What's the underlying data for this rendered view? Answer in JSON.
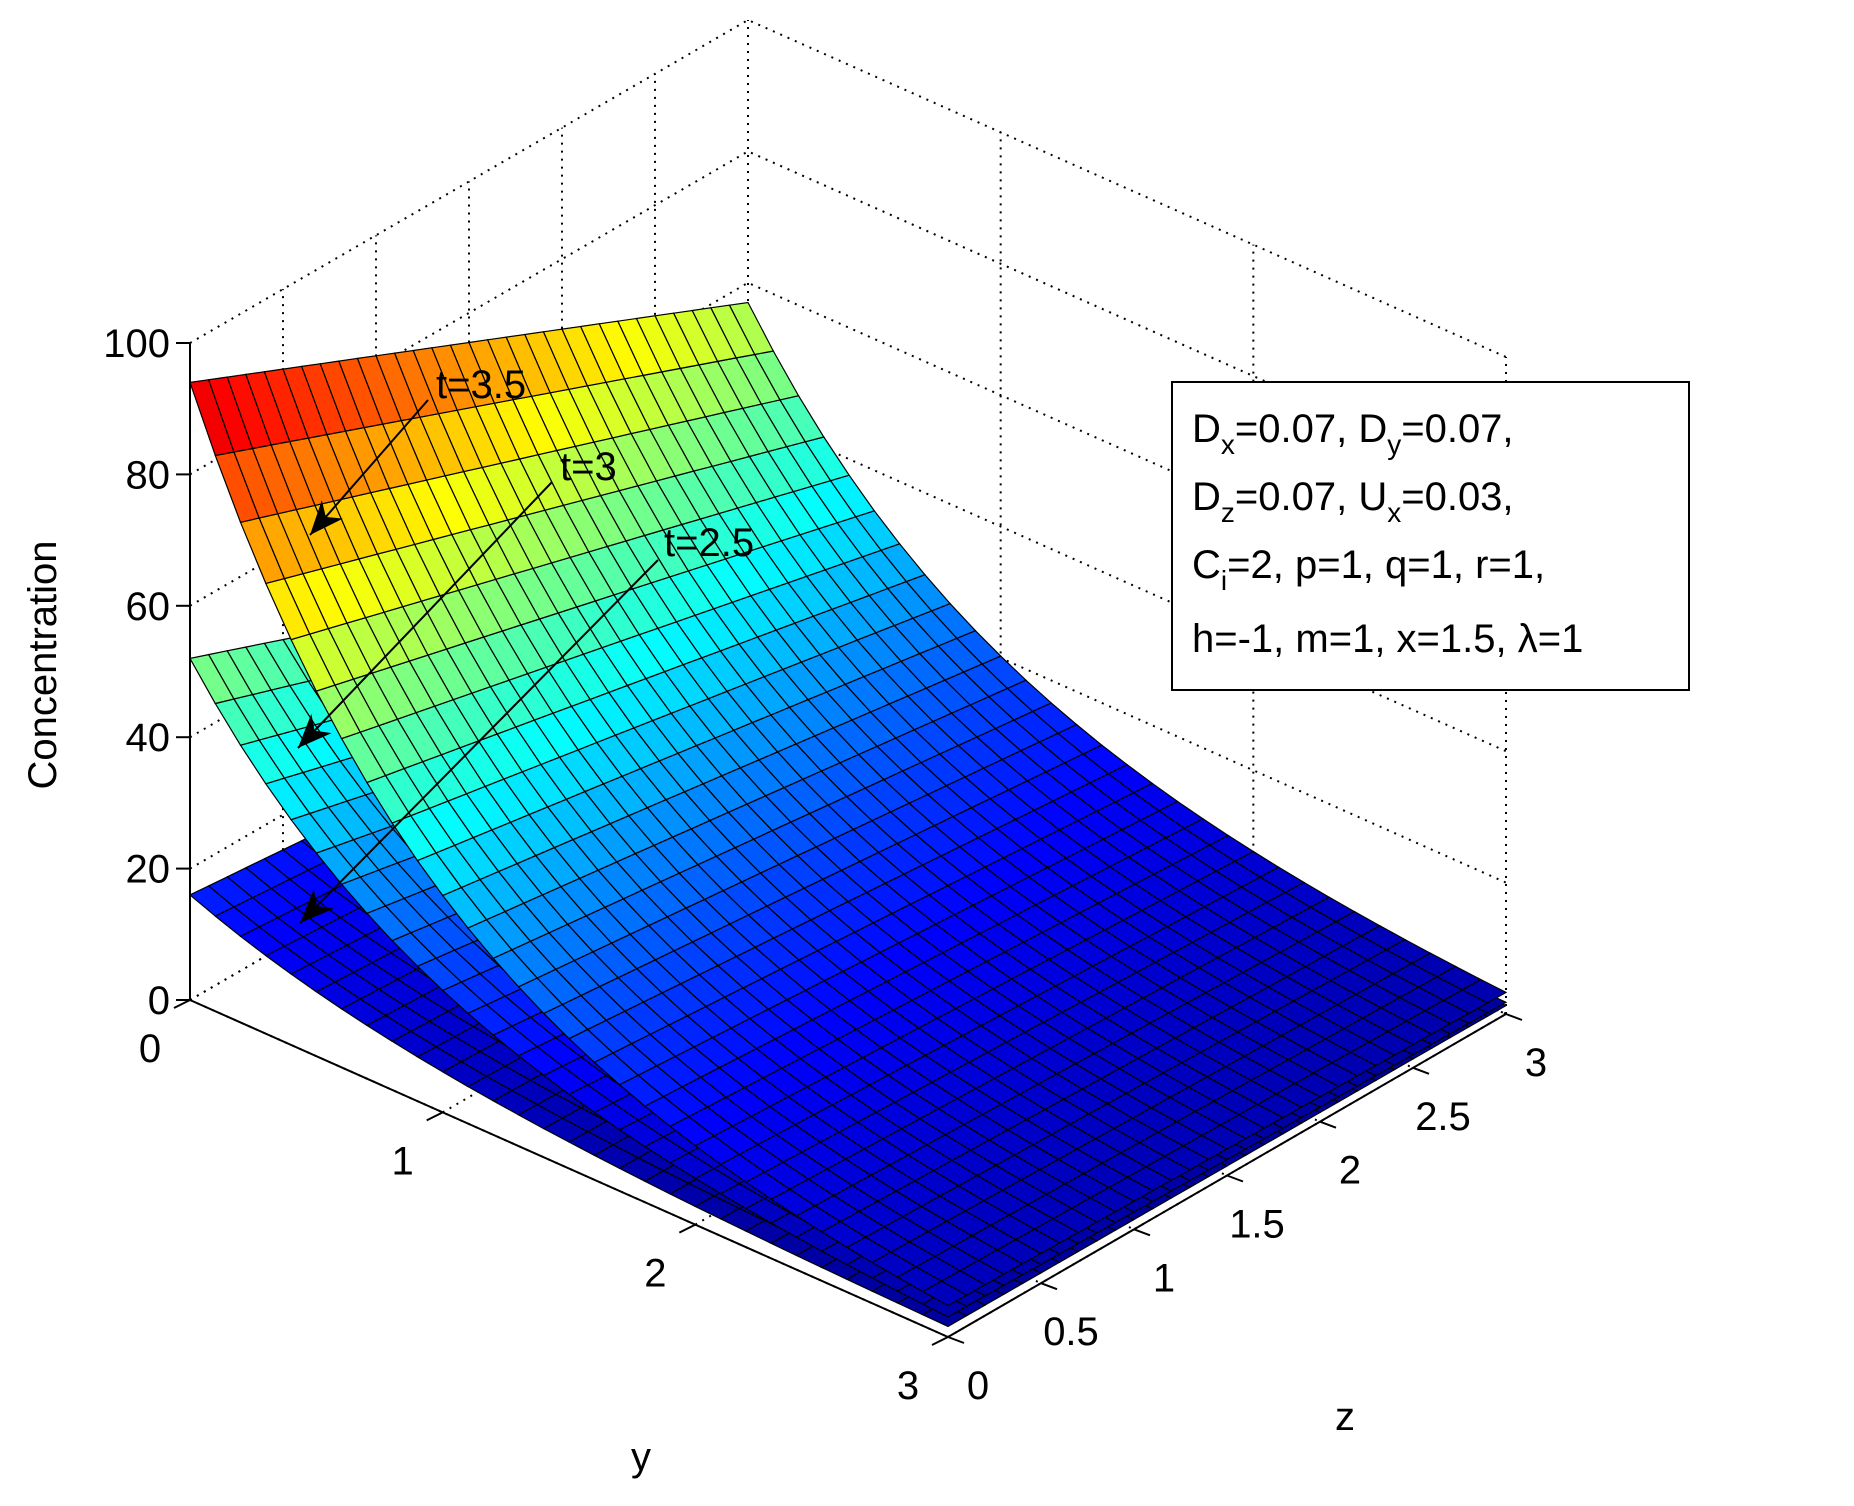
{
  "chart_data": {
    "type": "surface",
    "xlabel": "y",
    "ylabel": "z",
    "zlabel": "Concentration",
    "x_axis": {
      "label": "y",
      "range": [
        0,
        3
      ],
      "ticks": [
        "0",
        "1",
        "2",
        "3"
      ]
    },
    "y_axis": {
      "label": "z",
      "range": [
        0,
        3
      ],
      "ticks": [
        "0",
        "0.5",
        "1",
        "1.5",
        "2",
        "2.5",
        "3"
      ]
    },
    "z_axis": {
      "label": "Concentration",
      "range": [
        0,
        100
      ],
      "ticks": [
        "0",
        "20",
        "40",
        "60",
        "80",
        "100"
      ]
    },
    "grid": true,
    "colormap": [
      "#00008f",
      "#0000ff",
      "#00ffff",
      "#ffff00",
      "#ff0000",
      "#800000"
    ],
    "surfaces": [
      {
        "label": "t=3.5",
        "value_at_origin": 94,
        "value_at_z3_y0": 57,
        "value_far_corner": 1
      },
      {
        "label": "t=3",
        "value_at_origin": 52,
        "value_at_z3_y0": 20,
        "value_far_corner": 1
      },
      {
        "label": "t=2.5",
        "value_at_origin": 16,
        "value_at_z3_y0": 8,
        "value_far_corner": 1
      }
    ],
    "legend_lines": [
      [
        "D",
        "x",
        "=0.07, ",
        "D",
        "y",
        "=0.07,"
      ],
      [
        "D",
        "z",
        "=0.07, ",
        "U",
        "x",
        "=0.03,"
      ],
      [
        "C",
        "i",
        "=2, p=1, q=1, r=1,"
      ],
      [
        "h=-1, m=1, x=1.5, λ=1"
      ]
    ],
    "legend_text": {
      "line1_a": "D",
      "line1_a_sub": "x",
      "line1_b": "=0.07, ",
      "line1_c": "D",
      "line1_c_sub": "y",
      "line1_d": "=0.07,",
      "line2_a": "D",
      "line2_a_sub": "z",
      "line2_b": "=0.07, ",
      "line2_c": "U",
      "line2_c_sub": "x",
      "line2_d": "=0.03,",
      "line3_a": "C",
      "line3_a_sub": "i",
      "line3_b": "=2, p=1, q=1, r=1,",
      "line4": "h=-1, m=1, x=1.5, λ=1"
    },
    "legend_placement": "upper-right"
  }
}
